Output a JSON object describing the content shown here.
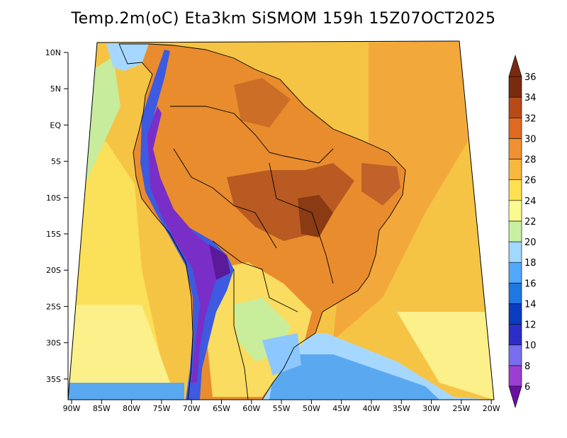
{
  "title": "Temp.2m(oC) Eta3km SiSMOM 159h 15Z07OCT2025",
  "y_axis_labels": [
    "10N",
    "5N",
    "EQ",
    "5S",
    "10S",
    "15S",
    "20S",
    "25S",
    "30S",
    "35S"
  ],
  "x_axis_labels": [
    "90W",
    "85W",
    "80W",
    "75W",
    "70W",
    "65W",
    "60W",
    "55W",
    "50W",
    "45W",
    "40W",
    "35W",
    "30W",
    "25W",
    "20W"
  ],
  "colorbar": {
    "labels": [
      "6",
      "8",
      "10",
      "12",
      "14",
      "16",
      "18",
      "20",
      "22",
      "24",
      "26",
      "28",
      "30",
      "32",
      "34",
      "36"
    ],
    "colors": [
      "#6b0fa0",
      "#9b3fd0",
      "#7a6ef0",
      "#2d2ec8",
      "#0a3cc0",
      "#1f78e0",
      "#50a8ff",
      "#a0d8ff",
      "#c8f0a0",
      "#fafa90",
      "#ffe050",
      "#f8b840",
      "#f09030",
      "#e06a20",
      "#b84a18",
      "#7a2a10"
    ]
  },
  "map": {
    "ocean_color": "#ffd24a",
    "land_color": "#e2862b",
    "hot_core_color": "#a8501c",
    "andes_cold_color": "#3a3ac8"
  }
}
